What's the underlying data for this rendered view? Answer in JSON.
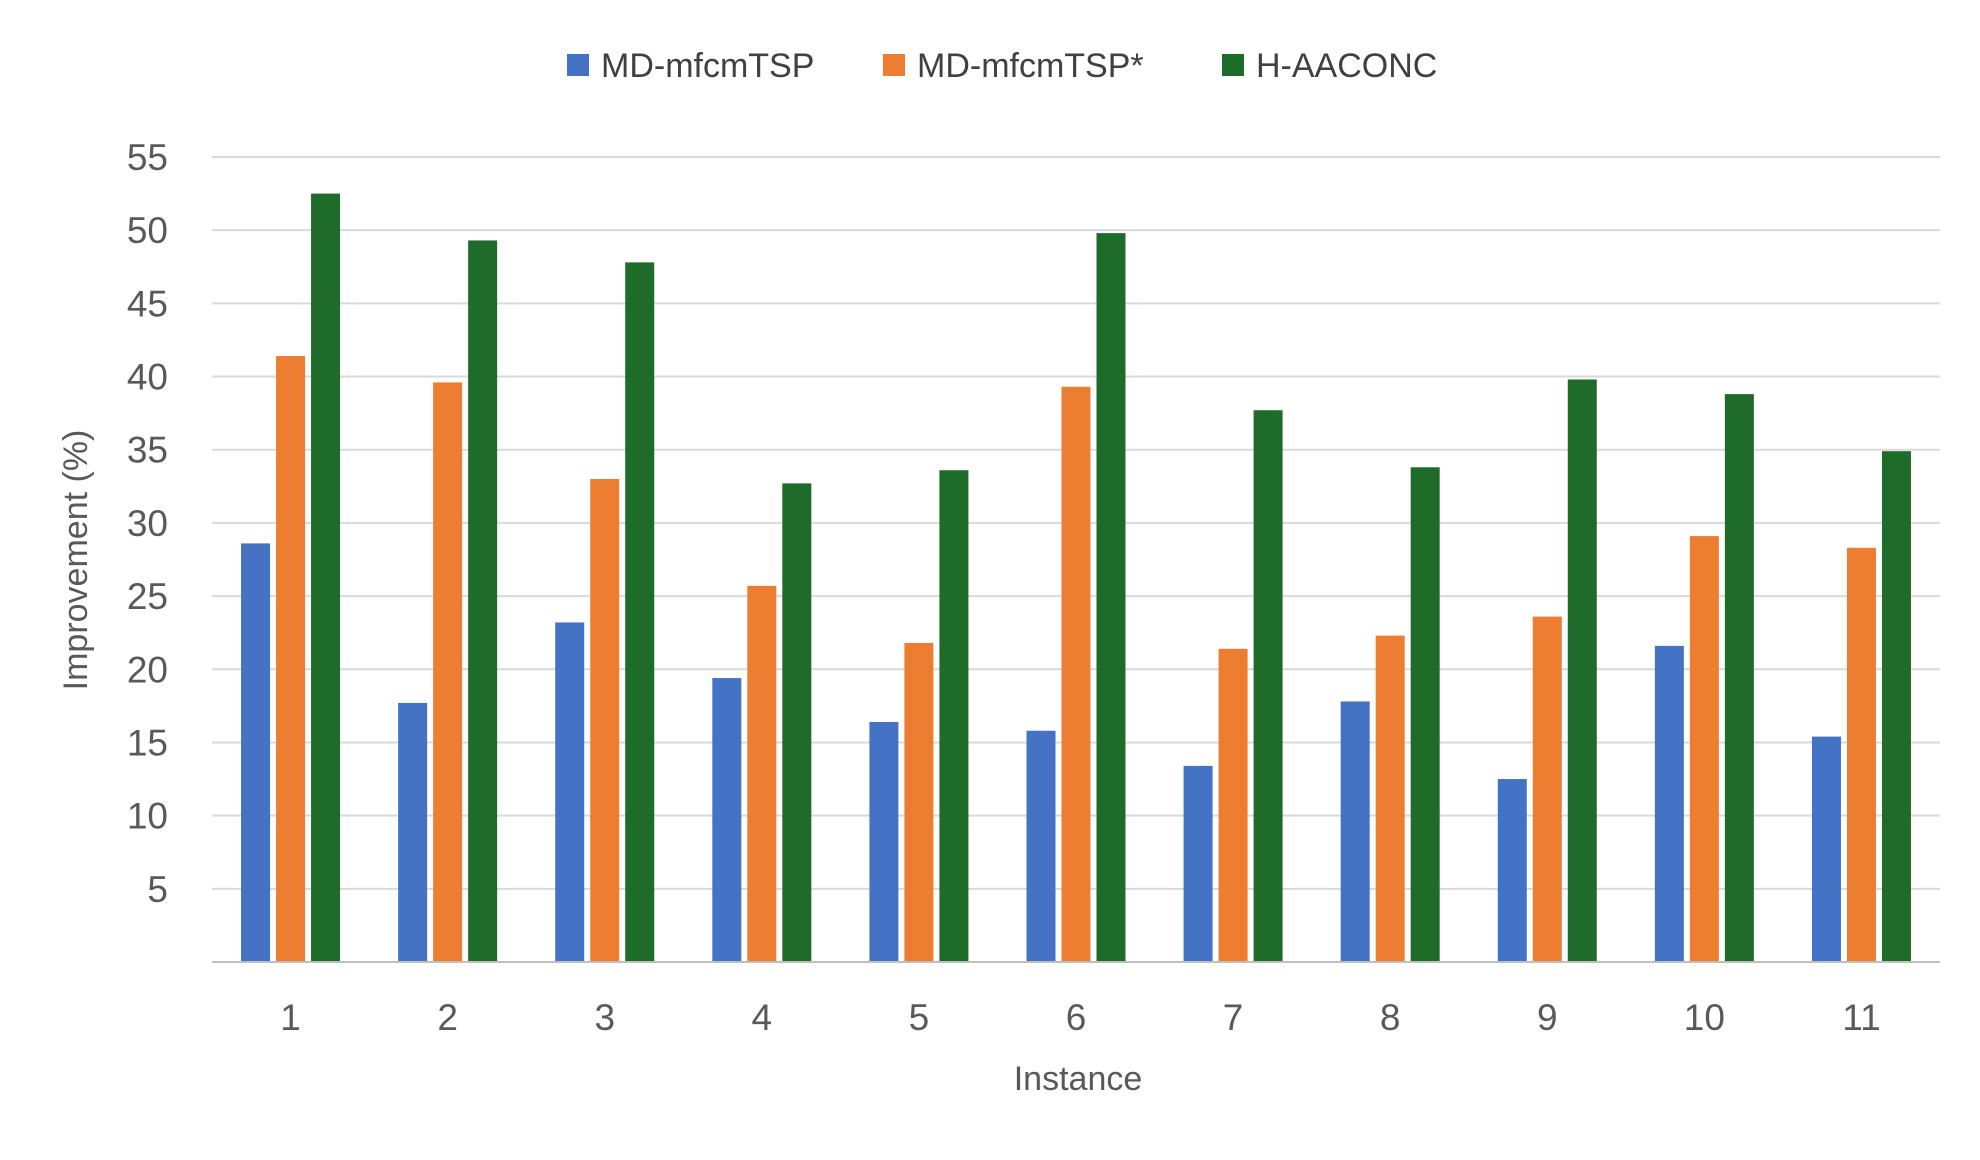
{
  "chart_data": {
    "type": "bar",
    "title": "",
    "xlabel": "Instance",
    "ylabel": "Improvement (%)",
    "categories": [
      "1",
      "2",
      "3",
      "4",
      "5",
      "6",
      "7",
      "8",
      "9",
      "10",
      "11"
    ],
    "yticks": [
      "5",
      "10",
      "15",
      "20",
      "25",
      "30",
      "35",
      "40",
      "45",
      "50",
      "55"
    ],
    "ylim": [
      0,
      55
    ],
    "grid": true,
    "legend_position": "top",
    "series": [
      {
        "name": "MD-mfcmTSP",
        "color": "#4472C4",
        "values": [
          28.6,
          17.7,
          23.2,
          19.4,
          16.4,
          15.8,
          13.4,
          17.8,
          12.5,
          21.6,
          15.4
        ]
      },
      {
        "name": "MD-mfcmTSP*",
        "color": "#ED7D31",
        "values": [
          41.4,
          39.6,
          33.0,
          25.7,
          21.8,
          39.3,
          21.4,
          22.3,
          23.6,
          29.1,
          28.3
        ]
      },
      {
        "name": "H-AACONC",
        "color": "#1E6B2A",
        "values": [
          52.5,
          49.3,
          47.8,
          32.7,
          33.6,
          49.8,
          37.7,
          33.8,
          39.8,
          38.8,
          34.9
        ]
      }
    ]
  }
}
